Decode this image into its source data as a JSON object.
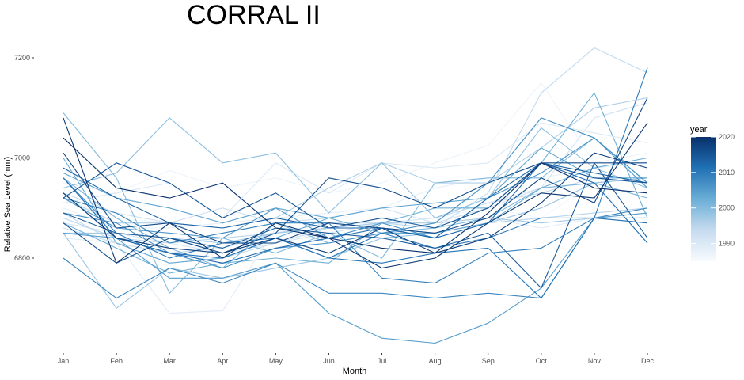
{
  "chart_data": {
    "type": "line",
    "title": "CORRAL II",
    "xlabel": "Month",
    "ylabel": "Relative Sea Level (mm)",
    "categories": [
      "Jan",
      "Feb",
      "Mar",
      "Apr",
      "May",
      "Jun",
      "Jul",
      "Aug",
      "Sep",
      "Oct",
      "Nov",
      "Dec"
    ],
    "ylim": [
      6620,
      7250
    ],
    "yticks": [
      6800,
      7000,
      7200
    ],
    "grid": false,
    "legend": {
      "title": "year",
      "position": "right",
      "type": "colorbar",
      "range": [
        1985,
        2020
      ],
      "ticks": [
        1990,
        2000,
        2010,
        2020
      ],
      "colors": {
        "low": "#f7fbff",
        "mid": "#6baed6",
        "high": "#08306b"
      }
    },
    "series": [
      {
        "year": 1986,
        "values": [
          6920,
          6880,
          6870,
          6860,
          6880,
          6870,
          6870,
          6880,
          6900,
          6880,
          6950,
          6960
        ]
      },
      {
        "year": 1987,
        "values": [
          6950,
          6930,
          6975,
          6940,
          6960,
          6930,
          6950,
          6990,
          7025,
          7150,
          6990,
          7010
        ]
      },
      {
        "year": 1988,
        "values": [
          6900,
          6860,
          6860,
          6870,
          6880,
          6890,
          6900,
          6940,
          6960,
          6960,
          6980,
          6990
        ]
      },
      {
        "year": 1989,
        "values": [
          6840,
          6830,
          6690,
          6695,
          6860,
          6830,
          6850,
          6850,
          6880,
          6860,
          6880,
          6900
        ]
      },
      {
        "year": 1990,
        "values": [
          6910,
          6930,
          6950,
          6880,
          6990,
          6930,
          6990,
          6980,
          6990,
          7070,
          7050,
          7030
        ]
      },
      {
        "year": 1991,
        "values": [
          6870,
          6850,
          6830,
          6810,
          6830,
          6850,
          6870,
          6880,
          6910,
          6940,
          6950,
          6960
        ]
      },
      {
        "year": 1992,
        "values": [
          6930,
          6890,
          6870,
          6900,
          6870,
          6880,
          6900,
          6870,
          6900,
          6940,
          7080,
          7110
        ]
      },
      {
        "year": 1993,
        "values": [
          6860,
          6830,
          6790,
          6800,
          6830,
          6860,
          6880,
          6880,
          6910,
          6930,
          6960,
          6950
        ]
      },
      {
        "year": 1994,
        "values": [
          6890,
          6830,
          6810,
          6820,
          6850,
          6870,
          6870,
          6860,
          6930,
          7130,
          7220,
          7170
        ]
      },
      {
        "year": 1995,
        "values": [
          6880,
          6840,
          6830,
          6840,
          6850,
          6860,
          6860,
          6850,
          6870,
          6880,
          6890,
          6900
        ]
      },
      {
        "year": 1996,
        "values": [
          6920,
          6870,
          6870,
          6860,
          6880,
          6940,
          6990,
          6950,
          6950,
          7020,
          7100,
          7120
        ]
      },
      {
        "year": 1997,
        "values": [
          6850,
          6850,
          6840,
          6830,
          6850,
          6860,
          6870,
          6870,
          6880,
          6870,
          6880,
          6870
        ]
      },
      {
        "year": 1998,
        "values": [
          6850,
          6700,
          6780,
          6760,
          6780,
          6800,
          6840,
          6850,
          6870,
          6900,
          6950,
          6960
        ]
      },
      {
        "year": 1999,
        "values": [
          6940,
          6970,
          7080,
          6990,
          7010,
          6890,
          6990,
          6880,
          6920,
          7060,
          6980,
          6940
        ]
      },
      {
        "year": 2000,
        "values": [
          7090,
          6960,
          6730,
          6840,
          6810,
          6850,
          6800,
          6950,
          6960,
          6960,
          7040,
          6950
        ]
      },
      {
        "year": 2001,
        "values": [
          6960,
          6880,
          6820,
          6780,
          6870,
          6830,
          6850,
          6860,
          6880,
          6940,
          6950,
          6920
        ]
      },
      {
        "year": 2002,
        "values": [
          6870,
          6820,
          6770,
          6790,
          6800,
          6790,
          6870,
          6900,
          6900,
          6990,
          7130,
          6880
        ]
      },
      {
        "year": 2003,
        "values": [
          7000,
          6830,
          6790,
          6800,
          6840,
          6880,
          6850,
          6850,
          6870,
          6940,
          6980,
          7000
        ]
      },
      {
        "year": 2004,
        "values": [
          6970,
          6920,
          6900,
          6870,
          6900,
          6880,
          6900,
          6910,
          6920,
          7020,
          6960,
          6960
        ]
      },
      {
        "year": 2005,
        "values": [
          6850,
          6840,
          6760,
          6760,
          6790,
          6690,
          6640,
          6630,
          6670,
          6740,
          6880,
          6890
        ]
      },
      {
        "year": 2006,
        "values": [
          6920,
          6860,
          6850,
          6840,
          6900,
          6840,
          6870,
          6840,
          6920,
          6970,
          7040,
          6940
        ]
      },
      {
        "year": 2007,
        "values": [
          6890,
          6870,
          6810,
          6780,
          6820,
          6830,
          6850,
          6870,
          6950,
          7080,
          7040,
          6950
        ]
      },
      {
        "year": 2008,
        "values": [
          6800,
          6720,
          6780,
          6750,
          6790,
          6730,
          6730,
          6720,
          6730,
          6720,
          6880,
          6900
        ]
      },
      {
        "year": 2009,
        "values": [
          6920,
          6890,
          6830,
          6850,
          6870,
          6870,
          6760,
          6750,
          6810,
          6820,
          6880,
          6880
        ]
      },
      {
        "year": 2010,
        "values": [
          6960,
          6850,
          6800,
          6830,
          6840,
          6800,
          6850,
          6820,
          6840,
          6880,
          6880,
          7180
        ]
      },
      {
        "year": 2011,
        "values": [
          6960,
          6840,
          6810,
          6800,
          6840,
          6800,
          6790,
          6810,
          6820,
          6720,
          6880,
          6870
        ]
      },
      {
        "year": 2012,
        "values": [
          6930,
          6840,
          6810,
          6790,
          6820,
          6840,
          6860,
          6840,
          6870,
          6990,
          6950,
          6830
        ]
      },
      {
        "year": 2013,
        "values": [
          6980,
          6920,
          6870,
          6860,
          6880,
          6860,
          6860,
          6840,
          6920,
          6990,
          6970,
          6950
        ]
      },
      {
        "year": 2014,
        "values": [
          6890,
          6850,
          6840,
          6820,
          6860,
          6850,
          6840,
          6820,
          6850,
          6740,
          6990,
          6840
        ]
      },
      {
        "year": 2015,
        "values": [
          6920,
          6990,
          6950,
          6880,
          6930,
          6860,
          6880,
          6860,
          6900,
          6990,
          6960,
          6950
        ]
      },
      {
        "year": 2016,
        "values": [
          6870,
          6790,
          6840,
          6810,
          6850,
          6960,
          6940,
          6900,
          6950,
          6990,
          6990,
          6990
        ]
      },
      {
        "year": 2017,
        "values": [
          7010,
          6860,
          6870,
          6830,
          6830,
          6870,
          6860,
          6850,
          6880,
          6960,
          6910,
          7120
        ]
      },
      {
        "year": 2018,
        "values": [
          6930,
          6840,
          6820,
          6810,
          6840,
          6810,
          6860,
          6810,
          6840,
          6910,
          7010,
          6980
        ]
      },
      {
        "year": 2019,
        "values": [
          7080,
          6790,
          6870,
          6800,
          6870,
          6840,
          6780,
          6800,
          6870,
          6930,
          6920,
          7070
        ]
      },
      {
        "year": 2020,
        "values": [
          7040,
          6940,
          6920,
          6950,
          6860,
          6840,
          6820,
          6810,
          6890,
          6990,
          6940,
          6930
        ]
      }
    ]
  }
}
